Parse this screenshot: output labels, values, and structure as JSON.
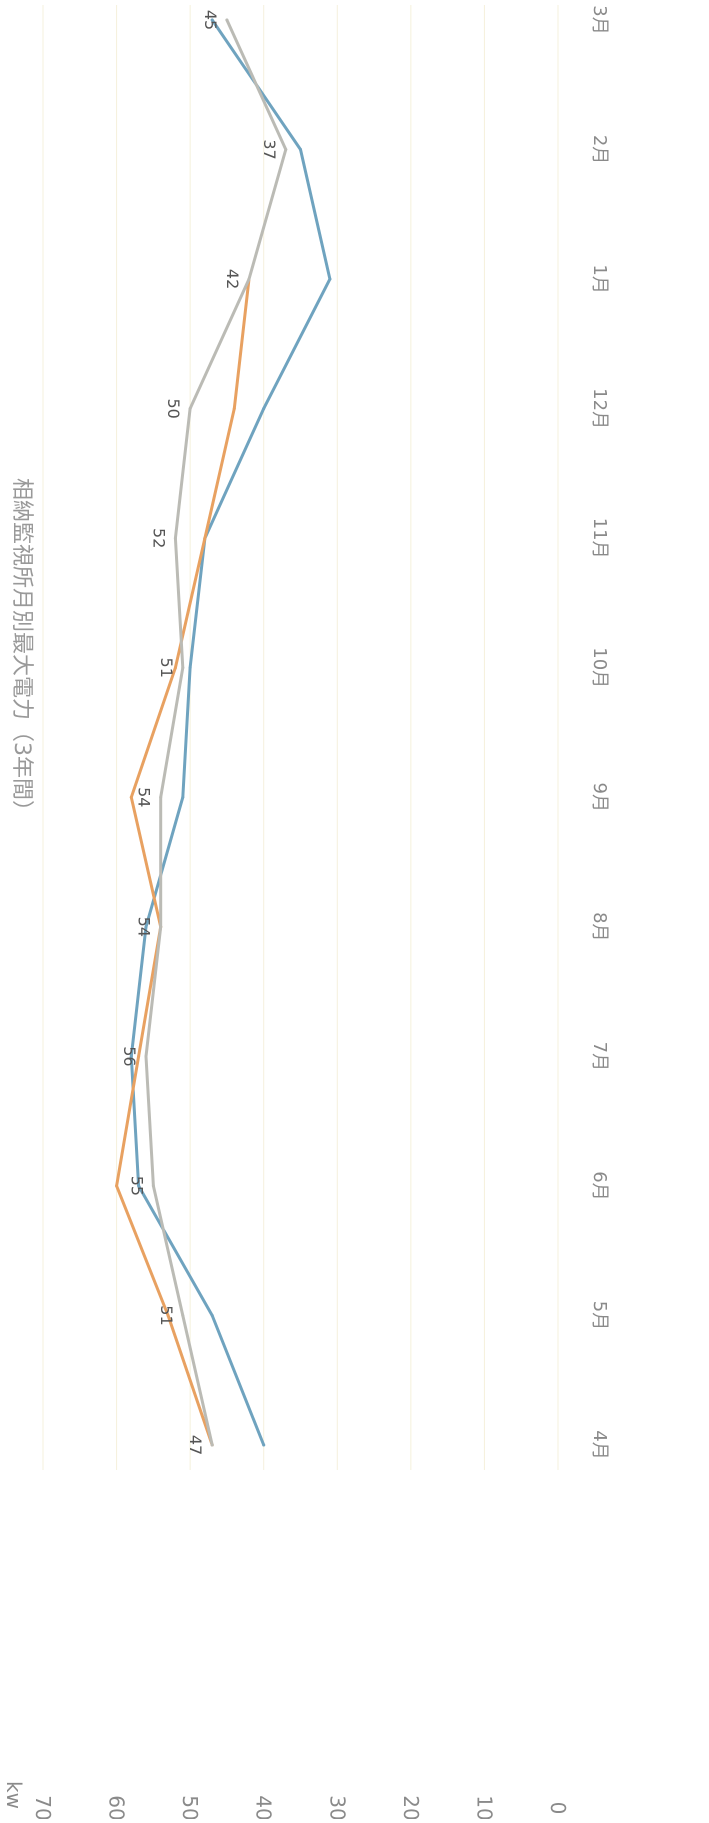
{
  "chart_data": {
    "type": "line",
    "title": "相納監視所月別最大電力（3年間）",
    "ylabel": "kw",
    "ylim": [
      0,
      70
    ],
    "yticks": [
      "0",
      "10",
      "20",
      "30",
      "40",
      "50",
      "60",
      "70"
    ],
    "categories": [
      "4月",
      "5月",
      "6月",
      "7月",
      "8月",
      "9月",
      "10月",
      "11月",
      "12月",
      "1月",
      "2月",
      "3月"
    ],
    "grid": true,
    "series": [
      {
        "color": "#6fa3bf",
        "values": [
          40,
          47,
          57,
          58,
          56,
          51,
          50,
          48,
          40,
          31,
          35,
          47
        ]
      },
      {
        "color": "#e8a161",
        "values": [
          47,
          53,
          60,
          57,
          54,
          58,
          52,
          48,
          44,
          42,
          null,
          null
        ]
      },
      {
        "color": "#bbbbb5",
        "values": [
          47,
          51,
          55,
          56,
          54,
          54,
          51,
          52,
          50,
          42,
          37,
          45
        ]
      }
    ],
    "data_labels": {
      "series": 2,
      "values": [
        "47",
        "51",
        "55",
        "56",
        "54",
        "54",
        "51",
        "52",
        "50",
        "42",
        "37",
        "45"
      ]
    },
    "colors": {
      "grid": "#f5f0dc",
      "axis_text": "#8a8a8a",
      "label_text": "#555555",
      "title_text": "#999999"
    }
  }
}
